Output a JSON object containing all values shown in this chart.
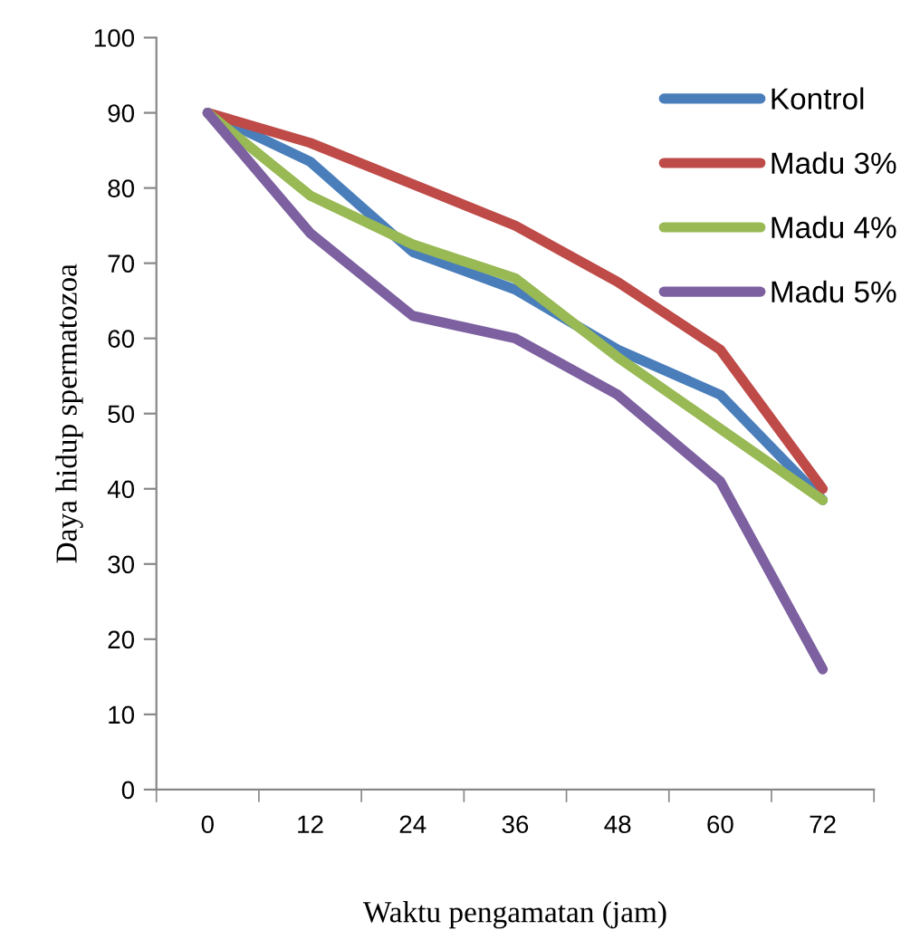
{
  "chart_data": {
    "type": "line",
    "xlabel": "Waktu pengamatan (jam)",
    "ylabel": "Daya hidup spermatozoa",
    "categories": [
      "0",
      "12",
      "24",
      "36",
      "48",
      "60",
      "72"
    ],
    "series": [
      {
        "name": "Kontrol",
        "color": "#4a7ebb",
        "values": [
          90,
          83.5,
          71.5,
          66.5,
          58.5,
          52.5,
          38.5
        ]
      },
      {
        "name": "Madu 3%",
        "color": "#be4b48",
        "values": [
          90,
          86,
          80.5,
          75,
          67.5,
          58.5,
          40
        ]
      },
      {
        "name": "Madu 4%",
        "color": "#98b954",
        "values": [
          90,
          79,
          72.5,
          68,
          57.5,
          48,
          38.5
        ]
      },
      {
        "name": "Madu 5%",
        "color": "#7d60a0",
        "values": [
          90,
          74,
          63,
          60,
          52.5,
          41,
          16
        ]
      }
    ],
    "ylim": [
      0,
      100
    ],
    "yticks": [
      0,
      10,
      20,
      30,
      40,
      50,
      60,
      70,
      80,
      90,
      100
    ],
    "grid": false,
    "legend": "top right",
    "marker": "none",
    "line_style": "solid"
  }
}
